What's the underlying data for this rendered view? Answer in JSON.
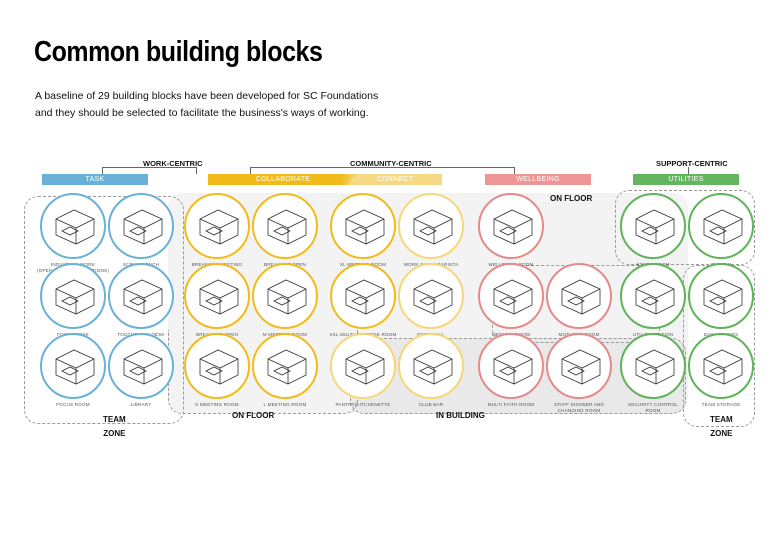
{
  "title": "Common building blocks",
  "subtitle_line1": "A  baseline of  29 building blocks have been developed for SC  Foundations",
  "subtitle_line2": "and they should be selected to facilitate the  business's ways of working.",
  "groups": {
    "work": "WORK-CENTRIC",
    "community": "COMMUNITY-CENTRIC",
    "support": "SUPPORT-CENTRIC"
  },
  "categories": {
    "task": {
      "label": "TASK",
      "color": "#6ab1d8"
    },
    "collaborate": {
      "label": "COLLABORATE",
      "color": "#f2bb1c"
    },
    "connect": {
      "label": "CONNECT",
      "color": "#f7d985"
    },
    "wellbeing": {
      "label": "WELLBEING",
      "color": "#ee9595"
    },
    "utilities": {
      "label": "UTILITIES",
      "color": "#63b65f"
    }
  },
  "zones": {
    "on_floor_top": "ON FLOOR",
    "on_floor_bottom": "ON FLOOR",
    "in_building": "IN BUILDING",
    "team_zone_left_1": "TEAM",
    "team_zone_left_2": "ZONE",
    "team_zone_right_1": "TEAM",
    "team_zone_right_2": "ZONE"
  },
  "blocks": {
    "r1": [
      {
        "label": "INDIVIDUAL WORK",
        "sub": "(OPEN PLAN WORKSTATIONS)",
        "cat": "task"
      },
      {
        "label": "SCRUM BENCH",
        "cat": "task"
      },
      {
        "label": "BREAKOUT MEETING BOOTH/POD",
        "cat": "collab"
      },
      {
        "label": "BREAKOUT OPEN PRESENTATION",
        "cat": "collab"
      },
      {
        "label": "XL MEETING ROOM",
        "cat": "collab"
      },
      {
        "label": "WORK CAFE / BARISTA STATION",
        "cat": "connect"
      },
      {
        "label": "WELLBEING ROOM",
        "cat": "well"
      },
      {
        "label": "STORE ROOM",
        "cat": "util"
      },
      {
        "label": "IT ROOM",
        "cat": "util"
      }
    ],
    "r2": [
      {
        "label": "FOCUS DESK",
        "cat": "task"
      },
      {
        "label": "TOUCHDOWN DESK",
        "cat": "task"
      },
      {
        "label": "BREAKOUT OPEN DISCUSSION",
        "cat": "collab"
      },
      {
        "label": "M MEETING ROOM",
        "cat": "collab"
      },
      {
        "label": "XXL MULTI-PURPOSE ROOM",
        "cat": "collab"
      },
      {
        "label": "FOOD HALL",
        "cat": "connect"
      },
      {
        "label": "MEDICAL ROOM",
        "cat": "well"
      },
      {
        "label": "MOTHERS ROOM",
        "cat": "well"
      },
      {
        "label": "UTILITY STATION",
        "cat": "util"
      },
      {
        "label": "DAY LOCKERS",
        "cat": "util"
      }
    ],
    "r3": [
      {
        "label": "FOCUS ROOM",
        "cat": "task"
      },
      {
        "label": "LIBRARY",
        "cat": "task"
      },
      {
        "label": "S MEETING ROOM",
        "cat": "collab"
      },
      {
        "label": "L MEETING ROOM",
        "cat": "collab"
      },
      {
        "label": "PANTRY/KITCHENETTE",
        "cat": "connect"
      },
      {
        "label": "CLUB BAR",
        "cat": "connect"
      },
      {
        "label": "MULTI FAITH ROOM",
        "cat": "well"
      },
      {
        "label": "STAFF SHOWER AND",
        "sub": "CHANGING ROOM",
        "cat": "well"
      },
      {
        "label": "SECURITY CONTROL",
        "sub": "ROOM",
        "cat": "util"
      },
      {
        "label": "TEAM STORAGE",
        "cat": "util"
      }
    ]
  }
}
